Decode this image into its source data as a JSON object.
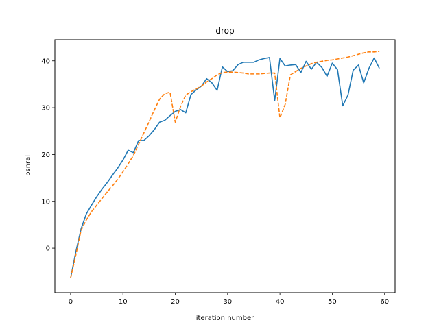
{
  "chart_data": {
    "type": "line",
    "title": "drop",
    "xlabel": "iteration number",
    "ylabel": "psnrall",
    "xlim": [
      -3,
      62
    ],
    "ylim": [
      -9.5,
      44.5
    ],
    "xticks": [
      0,
      10,
      20,
      30,
      40,
      50,
      60
    ],
    "yticks": [
      0,
      10,
      20,
      30,
      40
    ],
    "grid": false,
    "series": [
      {
        "style": "solid",
        "color": "#1f77b4",
        "x": [
          0,
          1,
          2,
          3,
          4,
          5,
          6,
          7,
          8,
          9,
          10,
          11,
          12,
          13,
          14,
          15,
          16,
          17,
          18,
          19,
          20,
          21,
          22,
          23,
          24,
          25,
          26,
          27,
          28,
          29,
          30,
          31,
          32,
          33,
          34,
          35,
          36,
          37,
          38,
          39,
          40,
          41,
          42,
          43,
          44,
          45,
          46,
          47,
          48,
          49,
          50,
          51,
          52,
          53,
          54,
          55,
          56,
          57,
          58,
          59
        ],
        "y": [
          -6.4,
          -0.8,
          4.1,
          7.3,
          9.2,
          11.0,
          12.6,
          14.0,
          15.6,
          17.1,
          18.8,
          20.9,
          20.4,
          23.0,
          23.0,
          24.0,
          25.3,
          26.9,
          27.3,
          28.3,
          29.2,
          29.6,
          28.9,
          32.8,
          33.8,
          34.6,
          36.2,
          35.3,
          33.7,
          38.7,
          37.7,
          37.9,
          39.2,
          39.7,
          39.7,
          39.7,
          40.2,
          40.5,
          40.7,
          31.5,
          40.5,
          38.9,
          39.1,
          39.2,
          37.5,
          39.9,
          38.2,
          39.7,
          38.6,
          36.7,
          39.5,
          38.1,
          30.4,
          32.7,
          38.0,
          39.1,
          35.3,
          38.4,
          40.6,
          38.4
        ]
      },
      {
        "style": "dashed",
        "color": "#ff7f0e",
        "x": [
          0,
          1,
          2,
          3,
          4,
          5,
          6,
          7,
          8,
          9,
          10,
          11,
          12,
          13,
          14,
          15,
          16,
          17,
          18,
          19,
          20,
          21,
          22,
          23,
          24,
          25,
          26,
          27,
          28,
          29,
          30,
          31,
          32,
          33,
          34,
          35,
          36,
          37,
          38,
          39,
          40,
          41,
          42,
          43,
          44,
          45,
          46,
          47,
          48,
          49,
          50,
          51,
          52,
          53,
          54,
          55,
          56,
          57,
          58,
          59
        ],
        "y": [
          -6.4,
          -1.5,
          3.8,
          6.0,
          7.8,
          9.2,
          10.6,
          12.0,
          13.3,
          14.7,
          16.3,
          18.0,
          19.8,
          22.2,
          24.6,
          27.0,
          29.5,
          31.8,
          33.0,
          33.3,
          26.9,
          30.2,
          32.7,
          33.4,
          34.0,
          34.6,
          35.5,
          36.2,
          37.0,
          37.5,
          37.6,
          37.6,
          37.5,
          37.4,
          37.2,
          37.2,
          37.2,
          37.3,
          37.4,
          37.4,
          27.8,
          30.7,
          37.0,
          37.7,
          38.4,
          38.9,
          39.4,
          39.7,
          39.9,
          40.1,
          40.2,
          40.4,
          40.6,
          40.8,
          41.1,
          41.4,
          41.7,
          41.9,
          41.9,
          42.0
        ]
      }
    ]
  }
}
